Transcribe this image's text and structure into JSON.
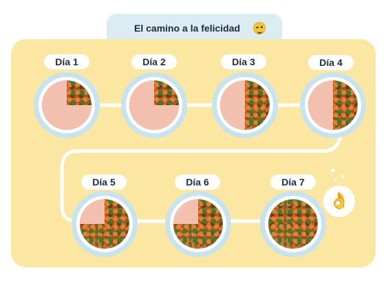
{
  "header": {
    "title": "El camino a la felicidad",
    "title_emoji_icon": "winking-face-icon"
  },
  "days": [
    {
      "label": "Día 1",
      "new_food_fraction": 0.25
    },
    {
      "label": "Día 2",
      "new_food_fraction": 0.25
    },
    {
      "label": "Día 3",
      "new_food_fraction": 0.5
    },
    {
      "label": "Día 4",
      "new_food_fraction": 0.5
    },
    {
      "label": "Día 5",
      "new_food_fraction": 0.75
    },
    {
      "label": "Día 6",
      "new_food_fraction": 0.75
    },
    {
      "label": "Día 7",
      "new_food_fraction": 1.0
    }
  ],
  "badge": {
    "icon": "ok-hand-icon"
  },
  "colors": {
    "panel": "#fbe7a1",
    "title_tab": "#dcecf3",
    "old_food": "#f3bfae",
    "path": "#ffffff"
  }
}
